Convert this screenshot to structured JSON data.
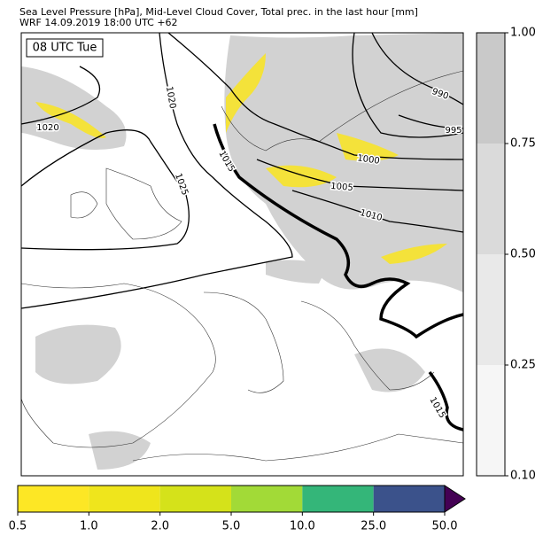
{
  "header": {
    "line1": "Sea Level Pressure [hPa], Mid-Level Cloud Cover, Total prec. in the last hour [mm]",
    "line2": "WRF 14.09.2019 18:00 UTC +62"
  },
  "map": {
    "time_label": "08 UTC Tue",
    "isobar_labels": [
      "1020",
      "1025",
      "1015",
      "1000",
      "1005",
      "1010",
      "990",
      "995",
      "1020",
      "1015"
    ]
  },
  "cloud_colorbar": {
    "ticks": [
      {
        "value": 0.1,
        "label": "0.10"
      },
      {
        "value": 0.25,
        "label": "0.25"
      },
      {
        "value": 0.5,
        "label": "0.50"
      },
      {
        "value": 0.75,
        "label": "0.75"
      },
      {
        "value": 1.0,
        "label": "1.00"
      }
    ],
    "colors": [
      "#f6f6f6",
      "#e9e9e9",
      "#dadada",
      "#c9c9c9"
    ]
  },
  "precip_colorbar": {
    "ticks": [
      0.5,
      {
        "value": 1.0,
        "label": "1.0"
      },
      {
        "value": 2.0,
        "label": "2.0"
      },
      {
        "value": 5.0,
        "label": "5.0"
      },
      {
        "value": 10.0,
        "label": "10.0"
      },
      {
        "value": 25.0,
        "label": "25.0"
      },
      {
        "value": 50.0,
        "label": "50.0"
      }
    ],
    "colors": [
      "#fde725",
      "#efe51c",
      "#d5e21a",
      "#a2da37",
      "#34b679",
      "#3b528b"
    ],
    "extend_color": "#440154"
  }
}
